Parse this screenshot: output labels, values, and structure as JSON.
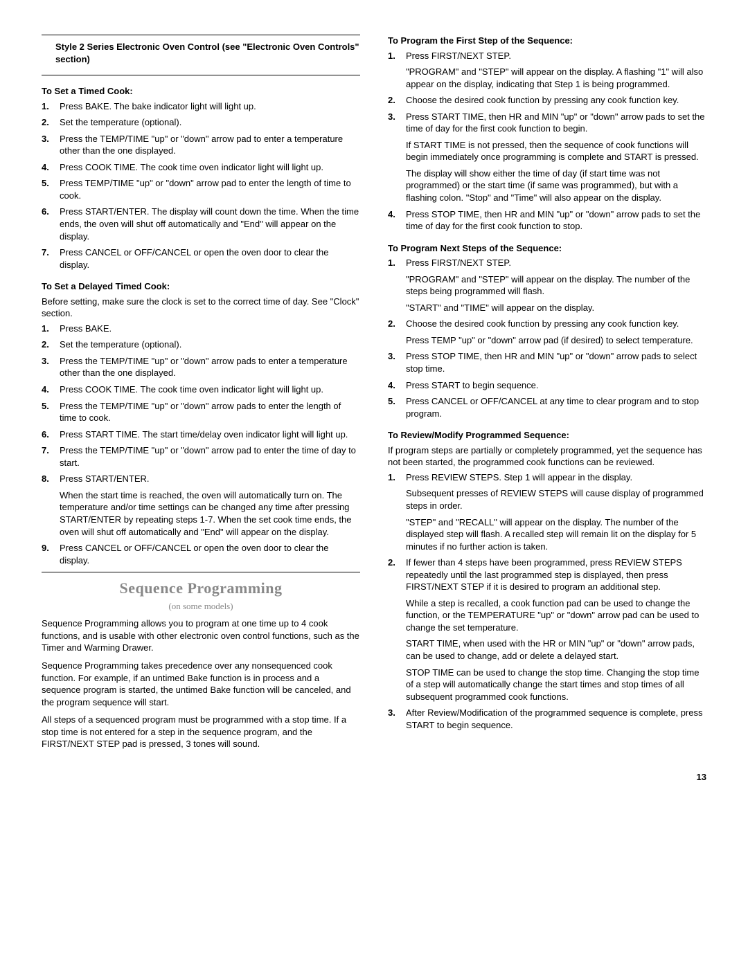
{
  "left": {
    "boxTitle": "Style 2 Series Electronic Oven Control (see \"Electronic Oven Controls\" section)",
    "timedCook": {
      "title": "To Set a Timed Cook:",
      "steps": [
        "Press BAKE. The bake indicator light will light up.",
        "Set the temperature (optional).",
        "Press the TEMP/TIME \"up\" or \"down\" arrow pad to enter a temperature other than the one displayed.",
        "Press COOK TIME. The cook time oven indicator light will light up.",
        "Press TEMP/TIME \"up\" or \"down\" arrow pad to enter the length of time to cook.",
        "Press START/ENTER. The display will count down the time. When the time ends, the oven will shut off automatically and \"End\" will appear on the display.",
        "Press CANCEL or OFF/CANCEL or open the oven door to clear the display."
      ]
    },
    "delayedCook": {
      "title": "To Set a Delayed Timed Cook:",
      "intro": "Before setting, make sure the clock is set to the correct time of day. See \"Clock\" section.",
      "steps": [
        {
          "t": "Press BAKE."
        },
        {
          "t": "Set the temperature (optional)."
        },
        {
          "t": "Press the TEMP/TIME \"up\" or \"down\" arrow pads to enter a temperature other than the one displayed."
        },
        {
          "t": "Press COOK TIME. The cook time oven indicator light will light up."
        },
        {
          "t": "Press the TEMP/TIME \"up\" or \"down\" arrow pads to enter the length of time to cook."
        },
        {
          "t": "Press START TIME. The start time/delay oven indicator light will light up."
        },
        {
          "t": "Press the TEMP/TIME \"up\" or \"down\" arrow pad to enter the time of day to start."
        },
        {
          "t": "Press START/ENTER.",
          "p": "When the start time is reached, the oven will automatically turn on. The temperature and/or time settings can be changed any time after pressing START/ENTER by repeating steps 1-7. When the set cook time ends, the oven will shut off automatically and \"End\" will appear on the display."
        },
        {
          "t": "Press CANCEL or OFF/CANCEL or open the oven door to clear the display."
        }
      ]
    },
    "seq": {
      "heading": "Sequence Programming",
      "sub": "(on some models)",
      "p1": "Sequence Programming allows you to program at one time up to 4 cook functions, and is usable with other electronic oven control functions, such as the Timer and Warming Drawer.",
      "p2": "Sequence Programming takes precedence over any nonsequenced cook function. For example, if an untimed Bake function is in process and a sequence program is started, the untimed Bake function will be canceled, and the program sequence will start.",
      "p3": "All steps of a sequenced program must be programmed with a stop time. If a stop time is not entered for a step in the sequence program, and the FIRST/NEXT STEP pad is pressed, 3 tones will sound."
    }
  },
  "right": {
    "firstStep": {
      "title": "To Program the First Step of the Sequence:",
      "steps": [
        {
          "t": "Press FIRST/NEXT STEP.",
          "p": "\"PROGRAM\" and \"STEP\" will appear on the display. A flashing \"1\" will also appear on the display, indicating that Step 1 is being programmed."
        },
        {
          "t": "Choose the desired cook function by pressing any cook function key."
        },
        {
          "t": "Press START TIME, then HR and MIN \"up\" or \"down\" arrow pads to set the time of day for the first cook function to begin.",
          "p": "If START TIME is not pressed, then the sequence of cook functions will begin immediately once programming is complete and START is pressed.",
          "p2": "The display will show either the time of day (if start time was not programmed) or the start time (if same was programmed), but with a flashing colon. \"Stop\" and \"Time\" will also appear on the display."
        },
        {
          "t": "Press STOP TIME, then HR and MIN \"up\" or \"down\" arrow pads to set the time of day for the first cook function to stop."
        }
      ]
    },
    "nextSteps": {
      "title": "To Program Next Steps of the Sequence:",
      "steps": [
        {
          "t": "Press FIRST/NEXT STEP.",
          "p": "\"PROGRAM\" and \"STEP\" will appear on the display. The number of the steps being programmed will flash.",
          "p2": "\"START\" and \"TIME\" will appear on the display."
        },
        {
          "t": "Choose the desired cook function by pressing any cook function key.",
          "p": "Press TEMP \"up\" or \"down\" arrow pad (if desired) to select temperature."
        },
        {
          "t": "Press STOP TIME, then HR and MIN \"up\" or \"down\" arrow pads to select stop time."
        },
        {
          "t": "Press START to begin sequence."
        },
        {
          "t": "Press CANCEL or OFF/CANCEL at any time to clear program and to stop program."
        }
      ]
    },
    "review": {
      "title": "To Review/Modify Programmed Sequence:",
      "intro": "If program steps are partially or completely programmed, yet the sequence has not been started, the programmed cook functions can be reviewed.",
      "steps": [
        {
          "t": "Press REVIEW STEPS. Step 1 will appear in the display.",
          "p": "Subsequent presses of REVIEW STEPS will cause display of programmed steps in order.",
          "p2": "\"STEP\" and \"RECALL\" will appear on the display. The number of the displayed step will flash. A recalled step will remain lit on the display for 5 minutes if no further action is taken."
        },
        {
          "t": "If fewer than 4 steps have been programmed, press REVIEW STEPS repeatedly until the last programmed step is displayed, then press FIRST/NEXT STEP if it is desired to program an additional step.",
          "p": "While a step is recalled, a cook function pad can be used to change the function, or the TEMPERATURE \"up\" or \"down\" arrow pad can be used to change the set temperature.",
          "p2": "START TIME, when used with the HR or MIN \"up\" or \"down\" arrow pads, can be used to change, add or delete a delayed start.",
          "p3": "STOP TIME can be used to change the stop time. Changing the stop time of a step will automatically change the start times and stop times of all subsequent programmed cook functions."
        },
        {
          "t": "After Review/Modification of the programmed sequence is complete, press START to begin sequence."
        }
      ]
    }
  },
  "pageNum": "13"
}
